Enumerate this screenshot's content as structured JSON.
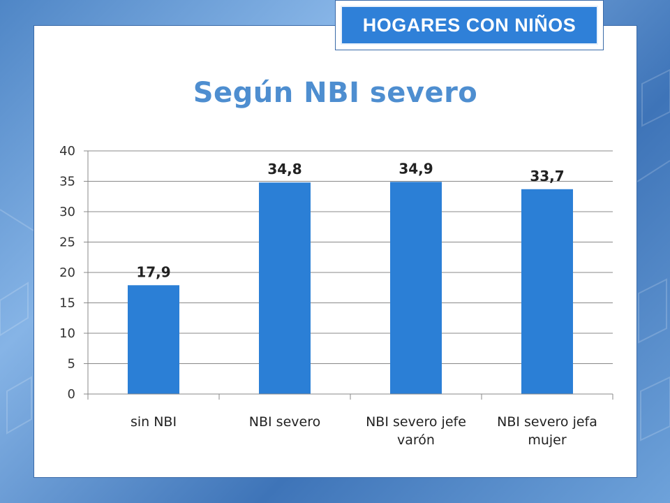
{
  "header": {
    "badge_text": "HOGARES CON NIÑOS"
  },
  "colors": {
    "bar": "#2b7fd6",
    "title": "#4e8ed0",
    "badge_bg": "#2f80d8"
  },
  "chart_data": {
    "type": "bar",
    "title": "Según NBI severo",
    "categories": [
      [
        "sin NBI"
      ],
      [
        "NBI severo"
      ],
      [
        "NBI severo jefe",
        "varón"
      ],
      [
        "NBI severo jefa",
        "mujer"
      ]
    ],
    "values": [
      17.9,
      34.8,
      34.9,
      33.7
    ],
    "data_labels": [
      "17,9",
      "34,8",
      "34,9",
      "33,7"
    ],
    "ylim": [
      0,
      40
    ],
    "yticks": [
      0,
      5,
      10,
      15,
      20,
      25,
      30,
      35,
      40
    ],
    "grid": true,
    "xlabel": "",
    "ylabel": ""
  }
}
